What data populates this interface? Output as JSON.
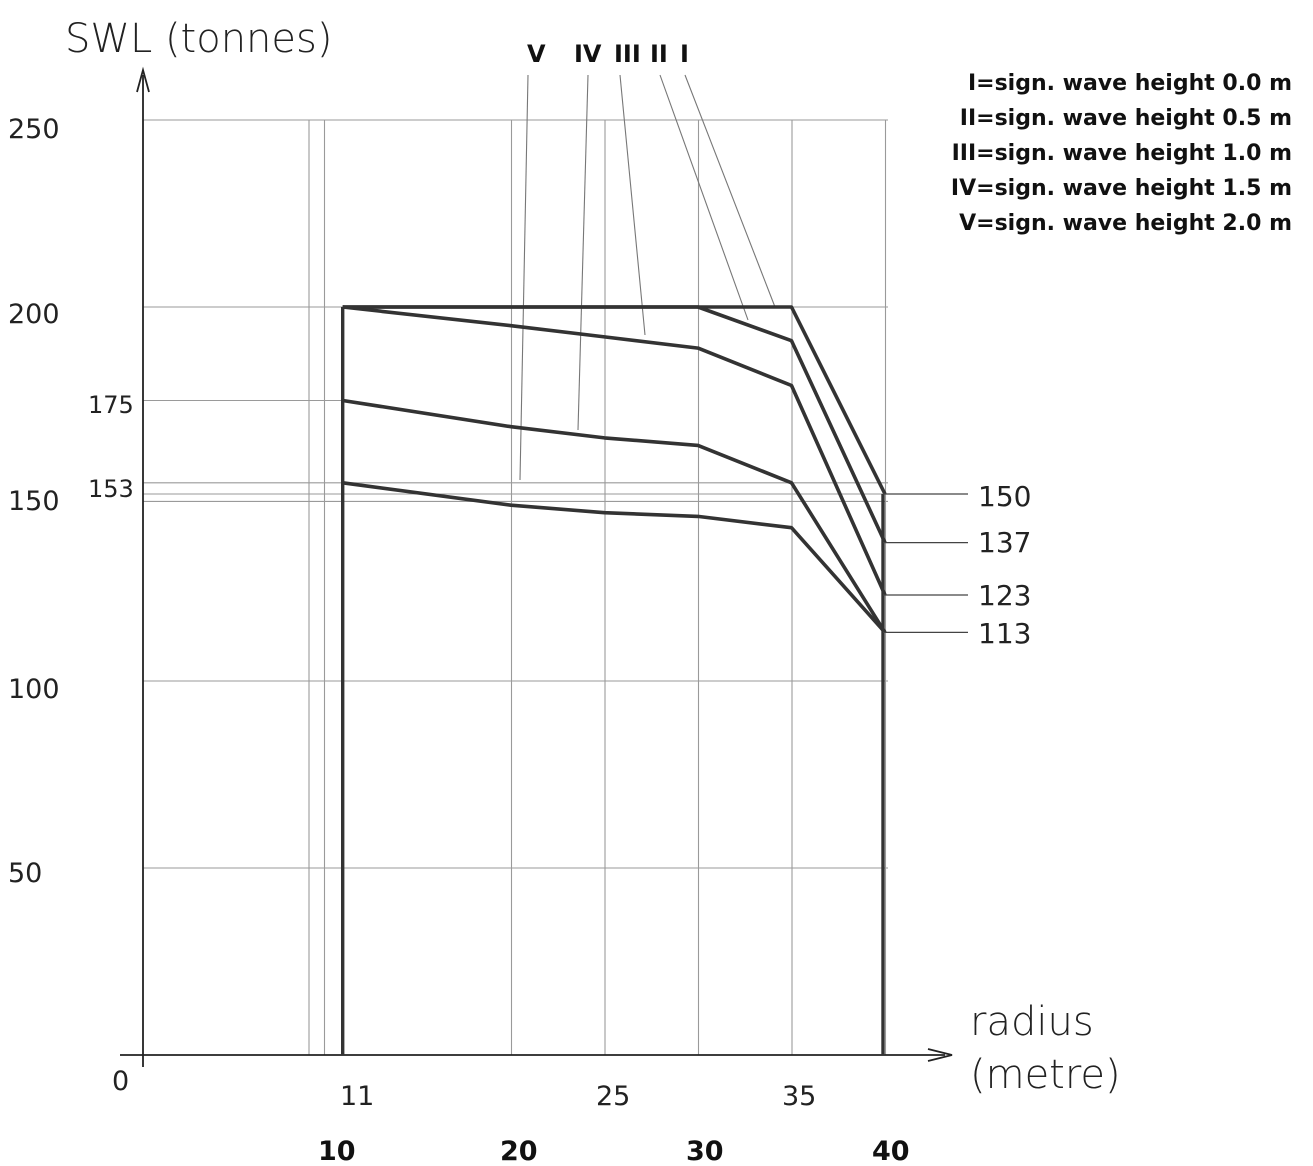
{
  "chart_data": {
    "type": "line",
    "title": "SWL (tonnes)",
    "xlabel": "radius (metre)",
    "ylabel": "SWL (tonnes)",
    "xlim": [
      0,
      43
    ],
    "ylim": [
      0,
      265
    ],
    "y_ticks": [
      "250",
      "200",
      "150",
      "100",
      "50"
    ],
    "y_marked": [
      "175",
      "153"
    ],
    "y_origin_label": "0",
    "x_ticks_light": [
      "11",
      "25",
      "35"
    ],
    "x_ticks_bold": [
      "10",
      "20",
      "30",
      "40"
    ],
    "x_grid": [
      10,
      20,
      25,
      30,
      35,
      40
    ],
    "y_grid": [
      50,
      100,
      150,
      200,
      250
    ],
    "series": [
      {
        "name": "I",
        "x": [
          11,
          35,
          40
        ],
        "y": [
          200,
          200,
          150
        ]
      },
      {
        "name": "II",
        "x": [
          11,
          30,
          35,
          40
        ],
        "y": [
          200,
          200,
          191,
          137
        ]
      },
      {
        "name": "III",
        "x": [
          11,
          20,
          25,
          30,
          35,
          40
        ],
        "y": [
          200,
          195,
          192,
          189,
          179,
          123
        ]
      },
      {
        "name": "IV",
        "x": [
          11,
          20,
          25,
          30,
          35,
          40
        ],
        "y": [
          175,
          168,
          165,
          163,
          153,
          113
        ]
      },
      {
        "name": "V",
        "x": [
          11,
          20,
          25,
          30,
          35,
          40
        ],
        "y": [
          153,
          147,
          145,
          144,
          141,
          113
        ]
      }
    ],
    "end_labels": [
      "150",
      "137",
      "123",
      "113"
    ],
    "roman_labels": [
      "V",
      "IV",
      "III",
      "II",
      "I"
    ],
    "legend": [
      "I=sign. wave height 0.0 m",
      "II=sign. wave height 0.5 m",
      "III=sign. wave height 1.0 m",
      "IV=sign. wave height 1.5 m",
      "V=sign. wave height 2.0 m"
    ],
    "legend_position": "top-right",
    "grid": true
  },
  "labels": {
    "title": "SWL (tonnes)",
    "xaxis_line1": "radius",
    "xaxis_line2": "(metre)"
  }
}
